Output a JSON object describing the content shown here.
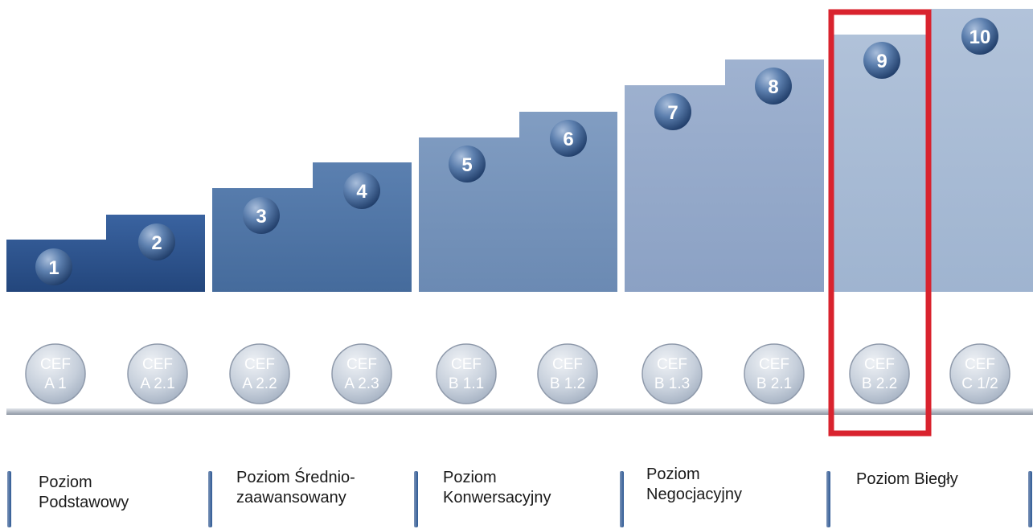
{
  "steps": [
    {
      "number": "1"
    },
    {
      "number": "2"
    },
    {
      "number": "3"
    },
    {
      "number": "4"
    },
    {
      "number": "5"
    },
    {
      "number": "6"
    },
    {
      "number": "7"
    },
    {
      "number": "8"
    },
    {
      "number": "9"
    },
    {
      "number": "10"
    }
  ],
  "cef_levels": [
    {
      "line1": "CEF",
      "line2": "A 1"
    },
    {
      "line1": "CEF",
      "line2": "A 2.1"
    },
    {
      "line1": "CEF",
      "line2": "A 2.2"
    },
    {
      "line1": "CEF",
      "line2": "A 2.3"
    },
    {
      "line1": "CEF",
      "line2": "B 1.1"
    },
    {
      "line1": "CEF",
      "line2": "B 1.2"
    },
    {
      "line1": "CEF",
      "line2": "B 1.3"
    },
    {
      "line1": "CEF",
      "line2": "B 2.1"
    },
    {
      "line1": "CEF",
      "line2": "B 2.2"
    },
    {
      "line1": "CEF",
      "line2": "C 1/2"
    }
  ],
  "levels": [
    {
      "line1": "Poziom",
      "line2": "Podstawowy"
    },
    {
      "line1": "Poziom Średnio-",
      "line2": "zaawansowany"
    },
    {
      "line1": "Poziom",
      "line2": "Konwersacyjny"
    },
    {
      "line1": "Poziom",
      "line2": "Negocjacyjny"
    },
    {
      "line1": "Poziom Biegły",
      "line2": ""
    }
  ],
  "highlight": {
    "step": "9",
    "color": "#d9232e"
  },
  "colors": {
    "group1": "#2c5189",
    "group2": "#4e73a3",
    "group3": "#7592b8",
    "group4": "#95a9c9",
    "group5": "#a8bad4",
    "circle": "#c3ccd8"
  }
}
